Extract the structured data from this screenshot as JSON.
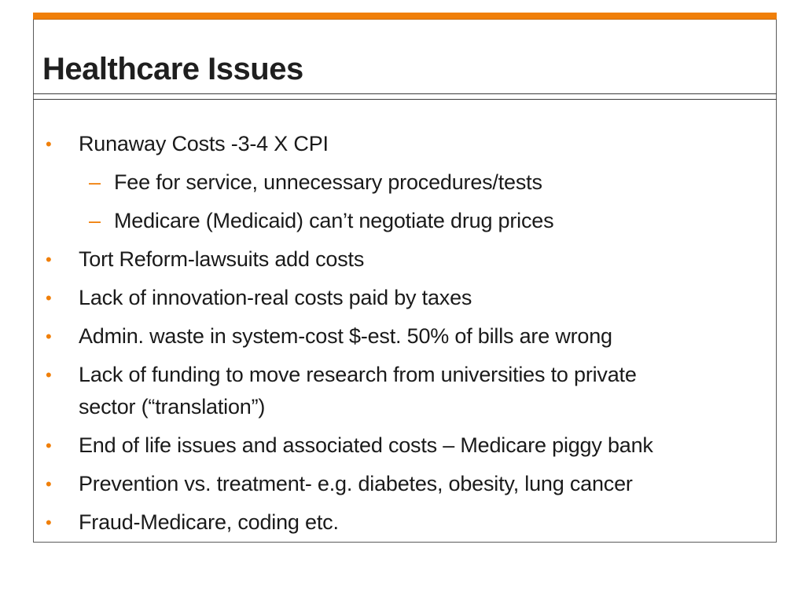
{
  "slide": {
    "title": "Healthcare Issues",
    "accent_color": "#f07f09",
    "bullets": [
      {
        "marker": "•",
        "text": "Runaway Costs -3-4 X CPI"
      },
      {
        "marker": "–",
        "text": "Fee for service, unnecessary procedures/tests"
      },
      {
        "marker": "–",
        "text": "Medicare (Medicaid) can’t negotiate drug prices"
      },
      {
        "marker": "•",
        "text": "Tort Reform-lawsuits add costs"
      },
      {
        "marker": "•",
        "text": "Lack of innovation-real costs paid by taxes"
      },
      {
        "marker": "•",
        "text": "Admin. waste in system-cost $-est. 50% of bills are wrong"
      },
      {
        "marker": "•",
        "text": "Lack of funding to move research from universities to private"
      },
      {
        "marker": "",
        "text": "sector (“translation”)"
      },
      {
        "marker": "•",
        "text": "End of life issues and associated costs – Medicare piggy bank"
      },
      {
        "marker": "•",
        "text": "Prevention vs. treatment- e.g. diabetes, obesity, lung cancer"
      },
      {
        "marker": "•",
        "text": "Fraud-Medicare, coding etc."
      }
    ]
  }
}
